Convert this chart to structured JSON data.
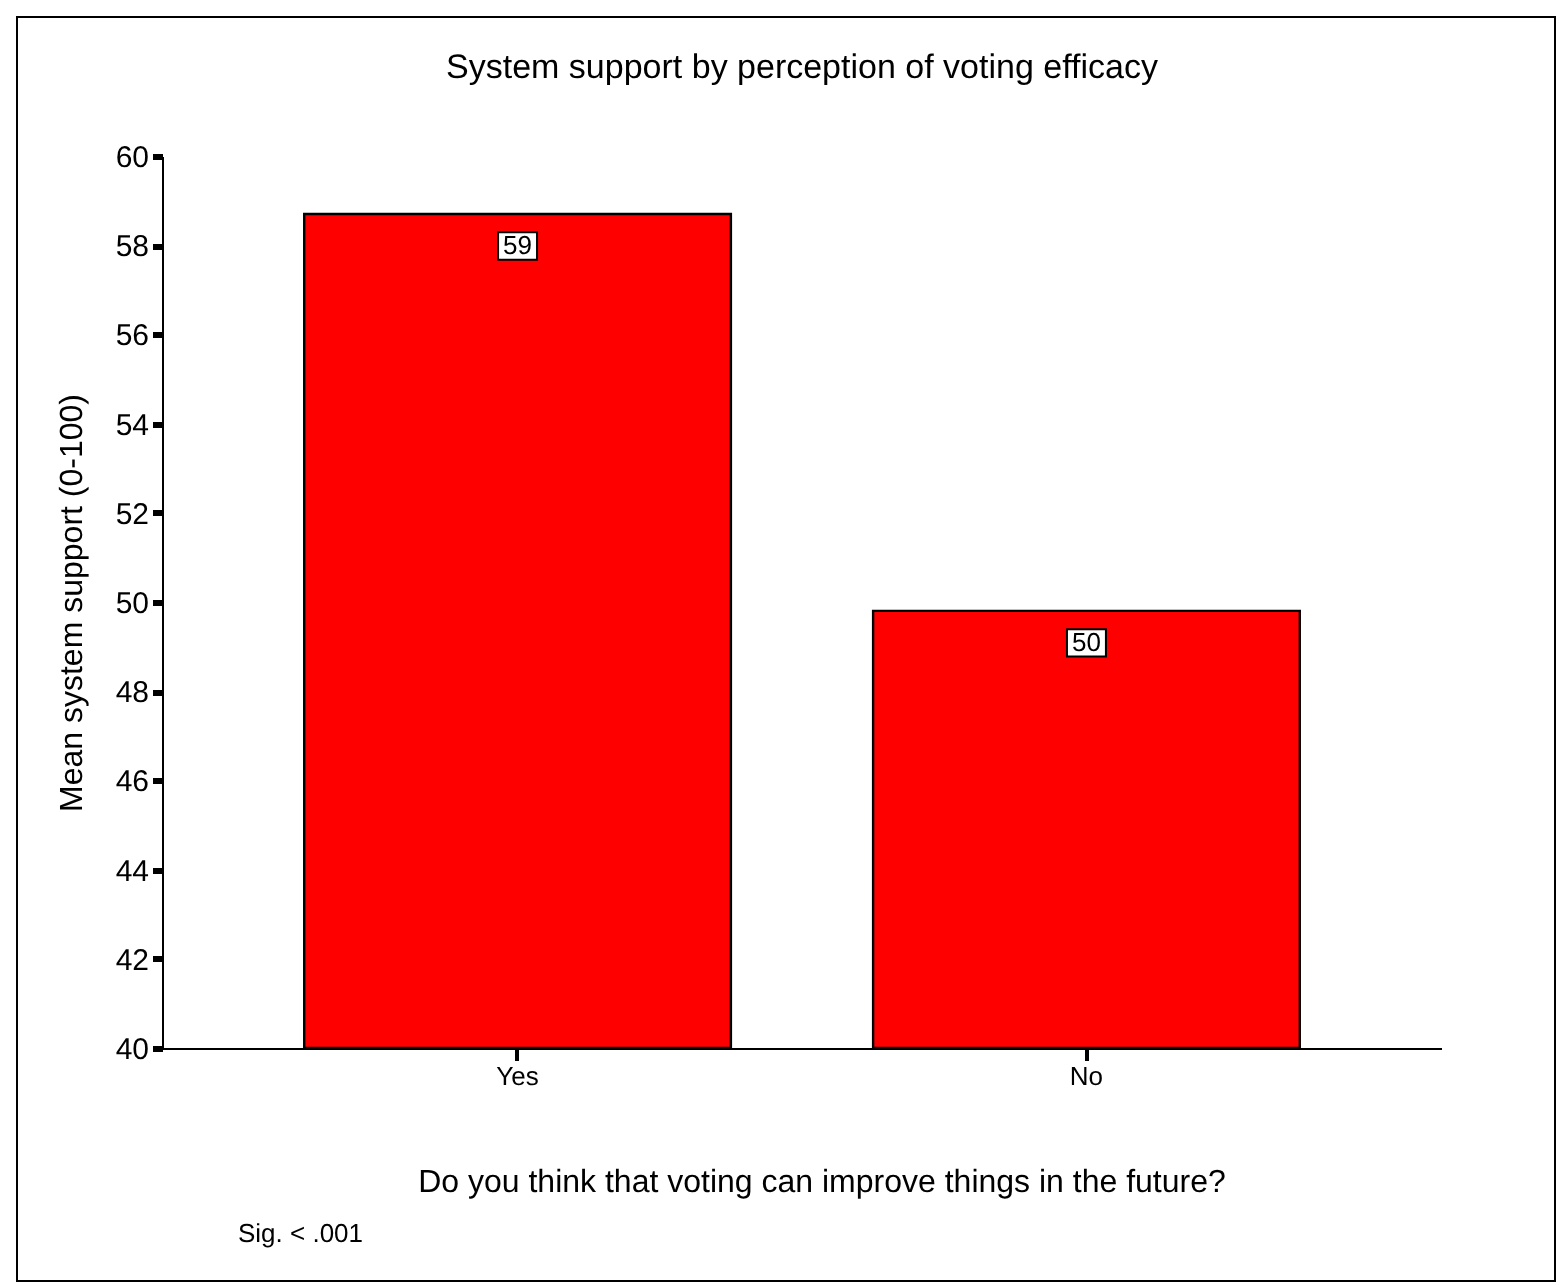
{
  "chart_data": {
    "type": "bar",
    "title": "System support by perception of voting efficacy",
    "xlabel": "Do you think that voting can improve things in the future?",
    "ylabel": "Mean system support (0-100)",
    "categories": [
      "Yes",
      "No"
    ],
    "values": [
      58.7,
      49.8
    ],
    "value_labels": [
      "59",
      "50"
    ],
    "color": "#ff0000",
    "ylim": [
      40,
      60
    ],
    "yticks": [
      40,
      42,
      44,
      46,
      48,
      50,
      52,
      54,
      56,
      58,
      60
    ],
    "grid": false,
    "annotations": [
      "Sig. < .001"
    ]
  }
}
